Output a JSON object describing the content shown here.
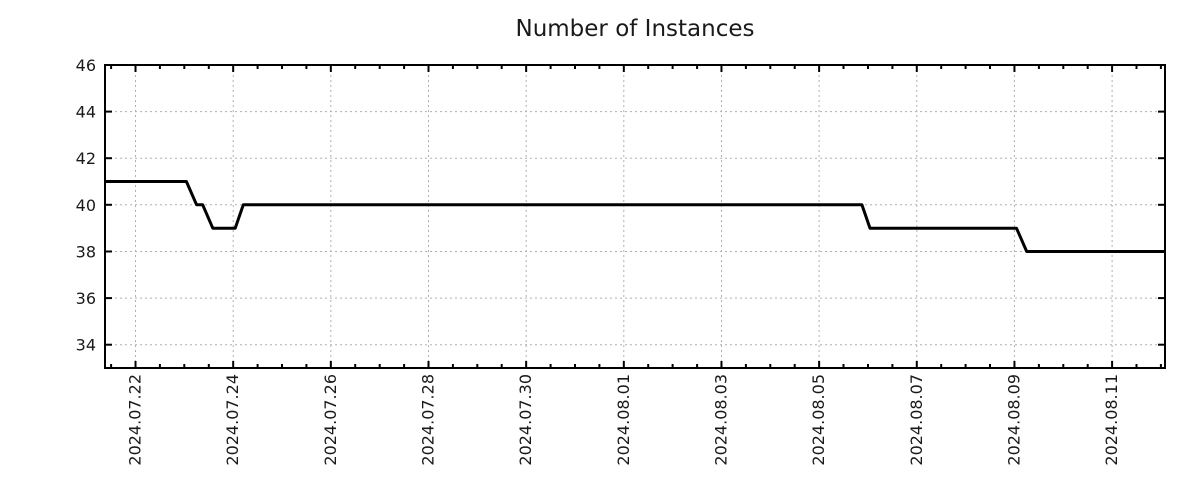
{
  "chart_data": {
    "type": "line",
    "title": "Number of Instances",
    "xlabel": "",
    "ylabel": "",
    "x_start": "2024-07-21 09:00",
    "x_end": "2024-08-12 02:00",
    "ylim": [
      33,
      46
    ],
    "y_ticks": [
      34,
      36,
      38,
      40,
      42,
      44,
      46
    ],
    "x_ticks": [
      {
        "label": "2024.07.22",
        "date": "2024-07-22 00:00"
      },
      {
        "label": "2024.07.24",
        "date": "2024-07-24 00:00"
      },
      {
        "label": "2024.07.26",
        "date": "2024-07-26 00:00"
      },
      {
        "label": "2024.07.28",
        "date": "2024-07-28 00:00"
      },
      {
        "label": "2024.07.30",
        "date": "2024-07-30 00:00"
      },
      {
        "label": "2024.08.01",
        "date": "2024-08-01 00:00"
      },
      {
        "label": "2024.08.03",
        "date": "2024-08-03 00:00"
      },
      {
        "label": "2024.08.05",
        "date": "2024-08-05 00:00"
      },
      {
        "label": "2024.08.07",
        "date": "2024-08-07 00:00"
      },
      {
        "label": "2024.08.09",
        "date": "2024-08-09 00:00"
      },
      {
        "label": "2024.08.11",
        "date": "2024-08-11 00:00"
      }
    ],
    "x_minor_hours": 12,
    "grid": true,
    "legend": "none",
    "series": [
      {
        "name": "instances",
        "points": [
          [
            "2024-07-21 09:00",
            41
          ],
          [
            "2024-07-23 01:00",
            41
          ],
          [
            "2024-07-23 06:00",
            40
          ],
          [
            "2024-07-23 09:00",
            40
          ],
          [
            "2024-07-23 14:00",
            39
          ],
          [
            "2024-07-24 01:00",
            39
          ],
          [
            "2024-07-24 05:00",
            40
          ],
          [
            "2024-08-05 21:00",
            40
          ],
          [
            "2024-08-06 01:00",
            39
          ],
          [
            "2024-08-09 01:00",
            39
          ],
          [
            "2024-08-09 06:00",
            38
          ],
          [
            "2024-08-12 02:00",
            38
          ]
        ]
      }
    ],
    "colors": {
      "line": "#000000",
      "grid": "#b0b0b0",
      "axis": "#000000",
      "text": "#1a1a1a",
      "background": "#ffffff"
    }
  }
}
